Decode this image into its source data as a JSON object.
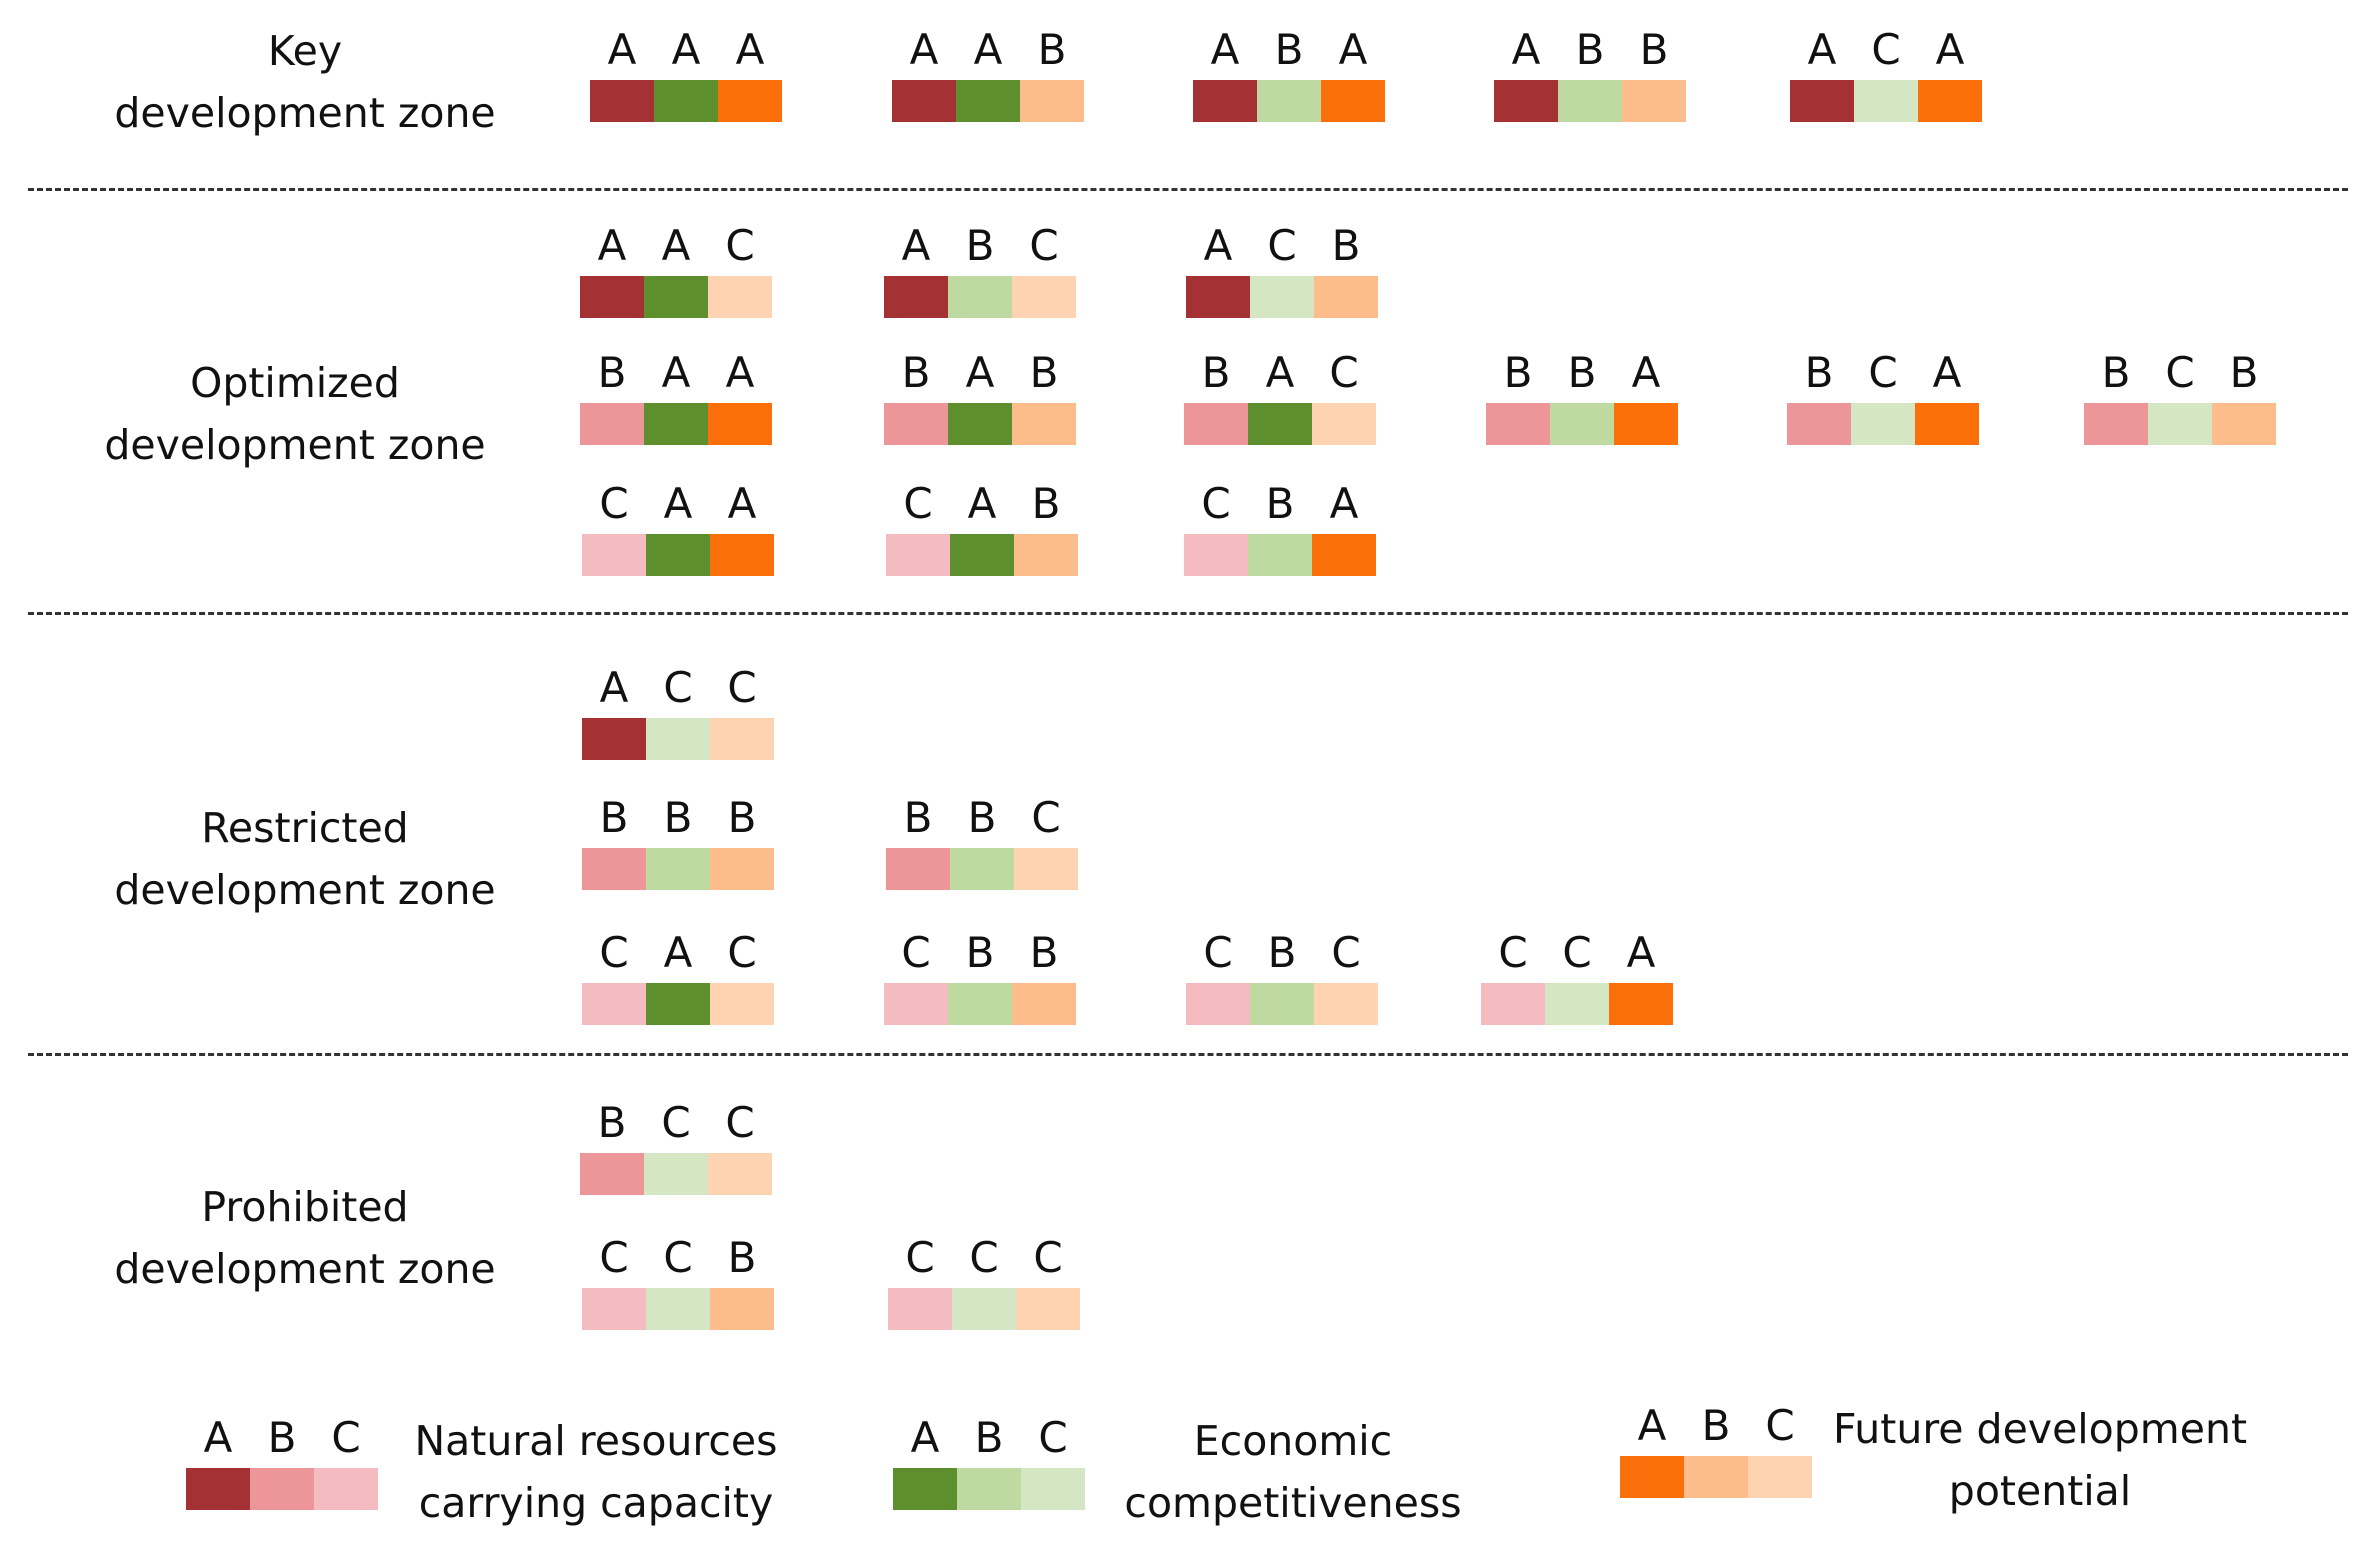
{
  "colors": {
    "natural": {
      "A": "#a43133",
      "B": "#ec9699",
      "C": "#f4bcc0"
    },
    "economic": {
      "A": "#5e8f2e",
      "B": "#bedaa0",
      "C": "#d4e6c4"
    },
    "future": {
      "A": "#fb6f0a",
      "B": "#fcbc8c",
      "C": "#fdd3b1"
    }
  },
  "zones": [
    {
      "id": "key",
      "label_line1": "Key",
      "label_line2": "development zone",
      "combos": [
        "AAA",
        "AAB",
        "ABA",
        "ABB",
        "ACA"
      ]
    },
    {
      "id": "optimized",
      "label_line1": "Optimized",
      "label_line2": "development zone",
      "combos": [
        "AAC",
        "ABC",
        "ACB",
        "BAA",
        "BAB",
        "BAC",
        "BBA",
        "BCA",
        "BCB",
        "CAA",
        "CAB",
        "CBA"
      ]
    },
    {
      "id": "restricted",
      "label_line1": "Restricted",
      "label_line2": "development zone",
      "combos": [
        "ACC",
        "BBB",
        "BBC",
        "CAC",
        "CBB",
        "CBC",
        "CCA"
      ]
    },
    {
      "id": "prohibited",
      "label_line1": "Prohibited",
      "label_line2": "development zone",
      "combos": [
        "BCC",
        "CCB",
        "CCC"
      ]
    }
  ],
  "legend": [
    {
      "key": "natural",
      "letters": [
        "A",
        "B",
        "C"
      ],
      "label_line1": "Natural resources",
      "label_line2": "carrying capacity"
    },
    {
      "key": "economic",
      "letters": [
        "A",
        "B",
        "C"
      ],
      "label_line1": "Economic",
      "label_line2": "competitiveness"
    },
    {
      "key": "future",
      "letters": [
        "A",
        "B",
        "C"
      ],
      "label_line1": "Future development",
      "label_line2": "potential"
    }
  ]
}
